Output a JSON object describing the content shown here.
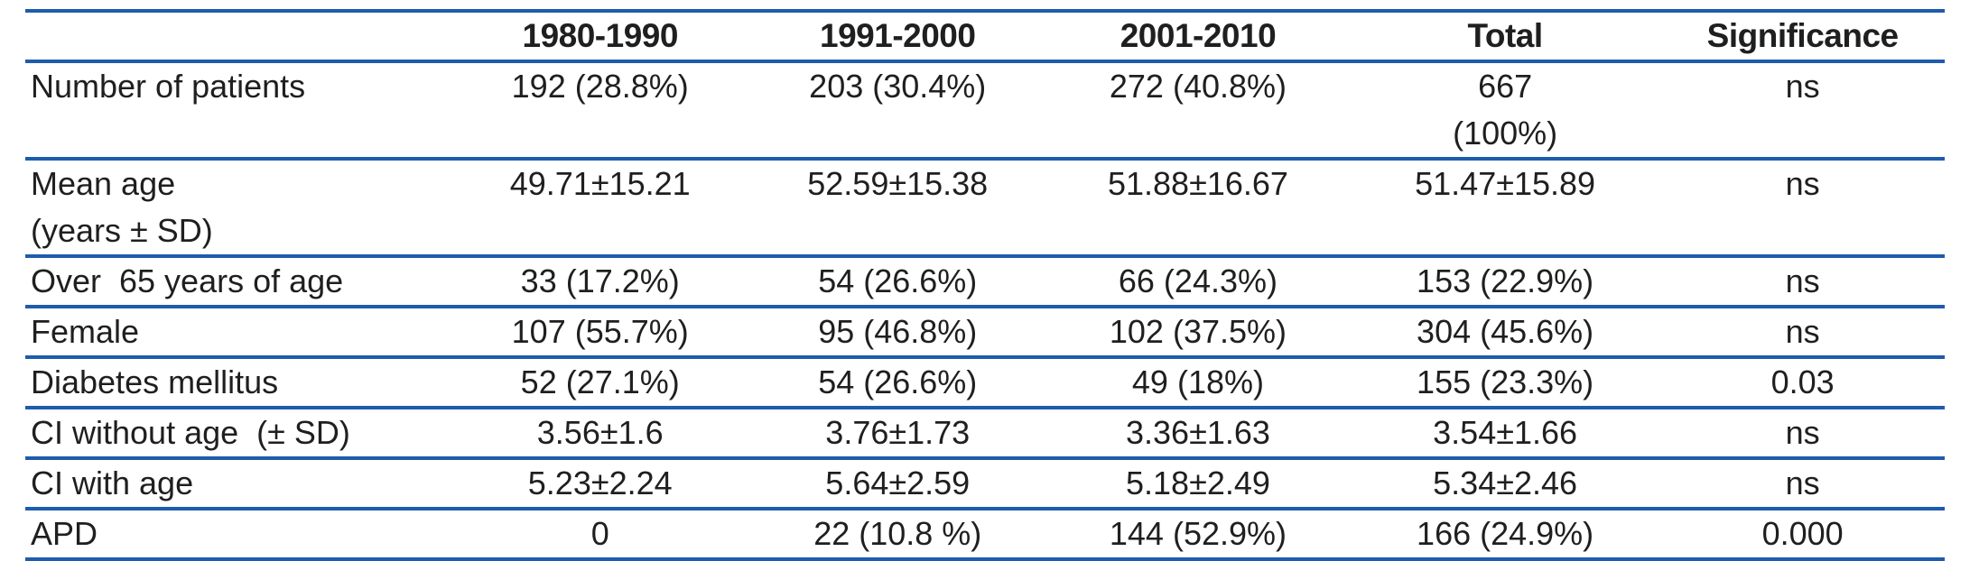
{
  "colors": {
    "rule_blue": "#1e5cac",
    "text": "#1f1f1f",
    "background": "#ffffff"
  },
  "table": {
    "headers": [
      "",
      "1980-1990",
      "1991-2000",
      "2001-2010",
      "Total",
      "Significance"
    ],
    "rows": [
      {
        "label": "Number of patients",
        "values": [
          "192 (28.8%)",
          "203 (30.4%)",
          "272 (40.8%)",
          "667\n(100%)",
          "ns"
        ]
      },
      {
        "label": "Mean age\n(years ± SD)",
        "values": [
          "49.71±15.21",
          "52.59±15.38",
          "51.88±16.67",
          "51.47±15.89",
          "ns"
        ]
      },
      {
        "label": "Over  65 years of age",
        "values": [
          "33 (17.2%)",
          "54 (26.6%)",
          "66 (24.3%)",
          "153 (22.9%)",
          "ns"
        ]
      },
      {
        "label": "Female",
        "values": [
          "107 (55.7%)",
          "95 (46.8%)",
          "102 (37.5%)",
          "304 (45.6%)",
          "ns"
        ]
      },
      {
        "label": "Diabetes mellitus",
        "values": [
          "52 (27.1%)",
          "54 (26.6%)",
          "49 (18%)",
          "155 (23.3%)",
          "0.03"
        ]
      },
      {
        "label": "CI without age  (± SD)",
        "values": [
          "3.56±1.6",
          "3.76±1.73",
          "3.36±1.63",
          "3.54±1.66",
          "ns"
        ]
      },
      {
        "label": "CI with age",
        "values": [
          "5.23±2.24",
          "5.64±2.59",
          "5.18±2.49",
          "5.34±2.46",
          "ns"
        ]
      },
      {
        "label": "APD",
        "values": [
          "0",
          "22 (10.8 %)",
          "144 (52.9%)",
          "166 (24.9%)",
          "0.000"
        ]
      }
    ]
  }
}
